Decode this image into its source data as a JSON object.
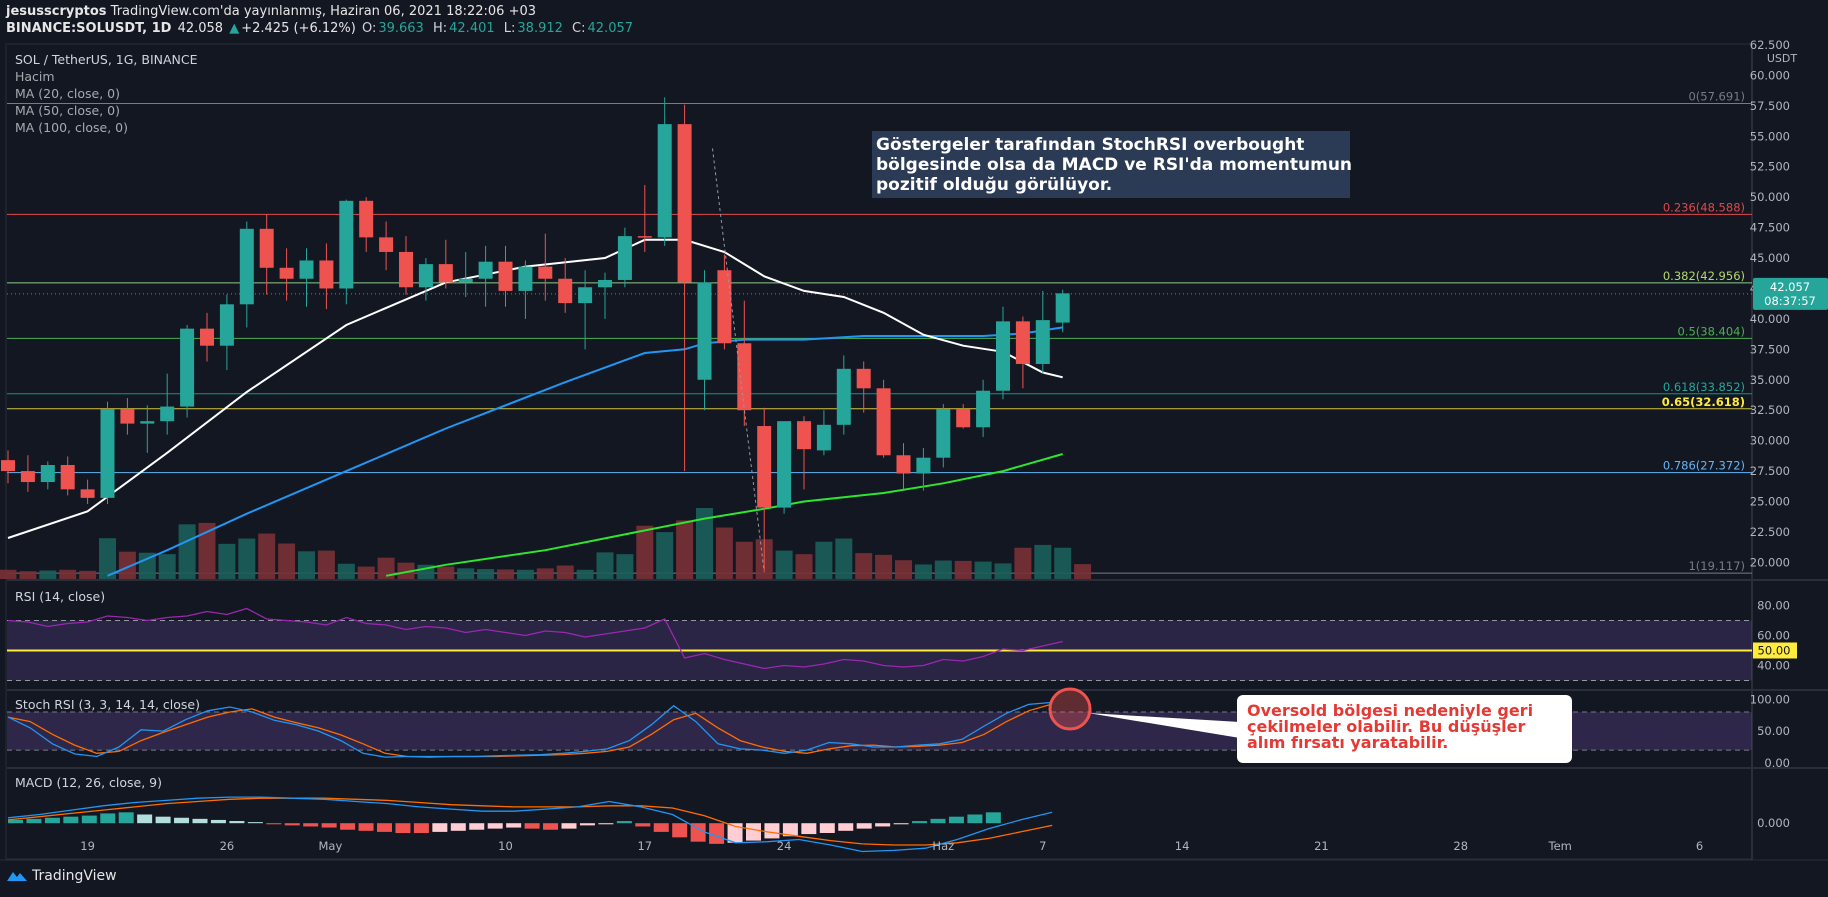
{
  "header": {
    "publisher": "jesusscryptos",
    "published_text": "TradingView.com'da yayınlanmış, Haziran 06, 2021 18:22:06 +03",
    "symbol_line": "BINANCE:SOLUSDT, 1D",
    "last": "42.058",
    "change": "+2.425 (+6.12%)",
    "o_label": "O:",
    "o": "39.663",
    "h_label": "H:",
    "h": "42.401",
    "l_label": "L:",
    "l": "38.912",
    "c_label": "C:",
    "c": "42.057"
  },
  "legend": {
    "title": "SOL / TetherUS, 1G, BINANCE",
    "items": [
      "Hacim",
      "MA (20, close, 0)",
      "MA (50, close, 0)",
      "MA (100, close, 0)"
    ]
  },
  "footer": {
    "brand": "TradingView"
  },
  "colors": {
    "up": "#26a69a",
    "down": "#ef5350",
    "ma20": "#ffffff",
    "ma50": "#2196f3",
    "ma100": "#2ee62e"
  },
  "chart_data": {
    "type": "candlestick",
    "price_axis": {
      "unit": "USDT",
      "ylim": [
        18.8,
        62.5
      ],
      "tick_labels": [
        "62.500",
        "60.000",
        "57.500",
        "55.000",
        "52.500",
        "50.000",
        "47.500",
        "45.000",
        "42.500",
        "40.000",
        "37.500",
        "35.000",
        "32.500",
        "30.000",
        "27.500",
        "25.000",
        "22.500",
        "20.000"
      ]
    },
    "x_axis": {
      "tick_labels": [
        "19",
        "26",
        "May",
        "10",
        "17",
        "24",
        "Haz",
        "7",
        "14",
        "21",
        "28",
        "Tem",
        "6"
      ],
      "tick_days": [
        4,
        11,
        16,
        25,
        32,
        39,
        47,
        52,
        59,
        66,
        73,
        78,
        85
      ]
    },
    "current_price": {
      "value": "42.057",
      "countdown": "08:37:57"
    },
    "ohlc": [
      [
        0,
        28.4,
        29.2,
        26.5,
        27.5
      ],
      [
        1,
        27.5,
        28.8,
        25.8,
        26.6
      ],
      [
        2,
        26.6,
        28.3,
        26.0,
        28.0
      ],
      [
        3,
        28.0,
        28.7,
        25.5,
        26.0
      ],
      [
        4,
        26.0,
        26.8,
        24.8,
        25.3
      ],
      [
        5,
        25.3,
        33.2,
        24.8,
        32.6
      ],
      [
        6,
        32.6,
        33.5,
        30.5,
        31.4
      ],
      [
        7,
        31.4,
        32.9,
        29.0,
        31.6
      ],
      [
        8,
        31.6,
        35.5,
        30.5,
        32.8
      ],
      [
        9,
        32.8,
        39.5,
        31.9,
        39.2
      ],
      [
        10,
        39.2,
        40.5,
        36.5,
        37.8
      ],
      [
        11,
        37.8,
        42.0,
        35.8,
        41.2
      ],
      [
        12,
        41.2,
        48.0,
        39.3,
        47.4
      ],
      [
        13,
        47.4,
        48.6,
        42.0,
        44.2
      ],
      [
        14,
        44.2,
        45.8,
        41.5,
        43.3
      ],
      [
        15,
        43.3,
        45.8,
        41.0,
        44.8
      ],
      [
        16,
        44.8,
        46.2,
        40.8,
        42.5
      ],
      [
        17,
        42.5,
        49.8,
        41.2,
        49.7
      ],
      [
        18,
        49.7,
        50.0,
        45.5,
        46.7
      ],
      [
        19,
        46.7,
        48.0,
        44.0,
        45.5
      ],
      [
        20,
        45.5,
        46.8,
        42.0,
        42.6
      ],
      [
        21,
        42.6,
        45.0,
        41.5,
        44.5
      ],
      [
        22,
        44.5,
        46.5,
        42.5,
        43.0
      ],
      [
        23,
        43.0,
        45.5,
        41.8,
        43.3
      ],
      [
        24,
        43.3,
        46.0,
        41.0,
        44.7
      ],
      [
        25,
        44.7,
        46.0,
        41.0,
        42.3
      ],
      [
        26,
        42.3,
        44.8,
        40.0,
        44.3
      ],
      [
        27,
        44.3,
        47.0,
        41.5,
        43.3
      ],
      [
        28,
        43.3,
        45.0,
        40.5,
        41.3
      ],
      [
        29,
        41.3,
        44.0,
        37.5,
        42.6
      ],
      [
        30,
        42.6,
        43.8,
        40.0,
        43.2
      ],
      [
        31,
        43.2,
        47.5,
        42.6,
        46.8
      ],
      [
        32,
        46.8,
        51.0,
        45.5,
        46.7
      ],
      [
        33,
        46.7,
        58.2,
        46.0,
        56.0
      ],
      [
        34,
        56.0,
        57.6,
        27.5,
        43.0
      ],
      [
        35,
        35.0,
        44.0,
        32.5,
        43.0
      ],
      [
        36,
        44.0,
        45.3,
        37.5,
        38.0
      ],
      [
        37,
        38.0,
        41.5,
        31.2,
        32.5
      ],
      [
        38,
        31.2,
        32.7,
        19.3,
        24.5
      ],
      [
        39,
        24.5,
        31.5,
        24.0,
        31.6
      ],
      [
        40,
        31.6,
        32.0,
        26.0,
        29.3
      ],
      [
        41,
        29.2,
        32.5,
        28.8,
        31.3
      ],
      [
        42,
        31.3,
        37.0,
        30.5,
        35.9
      ],
      [
        43,
        35.9,
        36.5,
        32.3,
        34.3
      ],
      [
        44,
        34.3,
        35.0,
        28.6,
        28.8
      ],
      [
        45,
        28.8,
        29.8,
        26.0,
        27.3
      ],
      [
        46,
        27.3,
        29.4,
        25.9,
        28.6
      ],
      [
        47,
        28.6,
        33.0,
        27.8,
        32.6
      ],
      [
        48,
        32.6,
        33.0,
        31.0,
        31.1
      ],
      [
        49,
        31.1,
        35.0,
        30.3,
        34.1
      ],
      [
        50,
        34.1,
        41.0,
        33.4,
        39.8
      ],
      [
        51,
        39.8,
        40.2,
        34.3,
        36.3
      ],
      [
        52,
        36.3,
        42.3,
        35.5,
        39.9
      ],
      [
        53,
        39.7,
        42.4,
        38.9,
        42.1
      ]
    ],
    "volume_up": [
      2,
      5,
      6,
      8,
      11
    ],
    "volume": [
      2.6,
      2.2,
      2.4,
      2.6,
      2.3,
      11.5,
      7.7,
      7.4,
      7.0,
      15.4,
      15.8,
      9.9,
      11.4,
      12.8,
      10.0,
      7.8,
      8.0,
      4.3,
      3.5,
      6.0,
      4.6,
      4.0,
      3.5,
      3.0,
      2.8,
      2.7,
      2.6,
      3.0,
      3.8,
      2.6,
      7.5,
      7.0,
      15.0,
      13.2,
      16.5,
      20.0,
      14.5,
      10.5,
      11.2,
      8.0,
      7.0,
      10.5,
      11.4,
      7.3,
      6.8,
      5.3,
      4.1,
      5.2,
      5.1,
      4.9,
      4.4,
      8.8,
      9.6,
      8.8,
      4.2
    ],
    "ma20": [
      [
        0,
        22.0
      ],
      [
        4,
        24.2
      ],
      [
        8,
        29.0
      ],
      [
        12,
        34.0
      ],
      [
        17,
        39.5
      ],
      [
        22,
        43.0
      ],
      [
        26,
        44.3
      ],
      [
        30,
        45.0
      ],
      [
        32,
        46.5
      ],
      [
        34,
        46.5
      ],
      [
        36,
        45.5
      ],
      [
        38,
        43.5
      ],
      [
        40,
        42.3
      ],
      [
        42,
        41.8
      ],
      [
        44,
        40.5
      ],
      [
        46,
        38.7
      ],
      [
        48,
        37.8
      ],
      [
        50,
        37.3
      ],
      [
        52,
        35.6
      ],
      [
        53,
        35.2
      ]
    ],
    "ma50": [
      [
        5,
        18.9
      ],
      [
        8,
        21.0
      ],
      [
        12,
        24.0
      ],
      [
        17,
        27.5
      ],
      [
        22,
        31.0
      ],
      [
        28,
        34.8
      ],
      [
        32,
        37.2
      ],
      [
        34,
        37.5
      ],
      [
        35,
        38.0
      ],
      [
        37,
        38.3
      ],
      [
        40,
        38.3
      ],
      [
        43,
        38.6
      ],
      [
        46,
        38.6
      ],
      [
        49,
        38.6
      ],
      [
        51,
        38.8
      ],
      [
        53,
        39.3
      ]
    ],
    "ma100": [
      [
        19,
        18.9
      ],
      [
        22,
        19.8
      ],
      [
        27,
        21.0
      ],
      [
        31,
        22.3
      ],
      [
        35,
        23.6
      ],
      [
        38,
        24.4
      ],
      [
        40,
        25.0
      ],
      [
        44,
        25.7
      ],
      [
        47,
        26.5
      ],
      [
        50,
        27.5
      ],
      [
        53,
        28.9
      ]
    ],
    "fib_levels": [
      {
        "label": "0(57.691)",
        "value": 57.691,
        "color": "#787b86",
        "text_color": "#787b86"
      },
      {
        "label": "0.236(48.588)",
        "value": 48.588,
        "color": "#e04848",
        "text_color": "#e04848"
      },
      {
        "label": "0.382(42.956)",
        "value": 42.956,
        "color": "#8ccd88",
        "text_color": "#b5d96b"
      },
      {
        "label": "0.5(38.404)",
        "value": 38.404,
        "color": "#4caf50",
        "text_color": "#4caf50"
      },
      {
        "label": "0.618(33.852)",
        "value": 33.852,
        "color": "#089981",
        "text_color": "#26a69a"
      },
      {
        "label": "0.65(32.618)",
        "value": 32.618,
        "color": "#d4c342",
        "text_color": "#ffeb3b"
      },
      {
        "label": "0.786(27.372)",
        "value": 27.372,
        "color": "#64b5f6",
        "text_color": "#64b5f6"
      },
      {
        "label": "1(19.117)",
        "value": 19.117,
        "color": "#787b86",
        "text_color": "#787b86"
      }
    ],
    "rsi": {
      "title": "RSI (14, close)",
      "ylim": [
        25,
        95
      ],
      "tick_labels": [
        "80.00",
        "60.00",
        "40.00"
      ],
      "ticks": [
        80,
        60,
        40
      ],
      "bands": [
        70,
        30
      ],
      "level_label": "50.00",
      "level": 50,
      "values": [
        70,
        69,
        66,
        68,
        69,
        73,
        72,
        70,
        72,
        73,
        76,
        74,
        78,
        71,
        70,
        69,
        67,
        72,
        68,
        67,
        64,
        66,
        65,
        62,
        64,
        62,
        60,
        63,
        62,
        59,
        61,
        63,
        65,
        71,
        45,
        48,
        44,
        41,
        38,
        40,
        39,
        41,
        44,
        43,
        40,
        39,
        40,
        44,
        43,
        46,
        51,
        50,
        53,
        56
      ]
    },
    "stoch": {
      "title": "Stoch RSI (3, 3, 14, 14, close)",
      "ylim": [
        -5,
        110
      ],
      "tick_labels": [
        "100.00",
        "50.00",
        "0.00"
      ],
      "ticks": [
        100,
        50,
        0
      ],
      "bands": [
        80,
        20
      ],
      "k": [
        72,
        55,
        30,
        14,
        10,
        25,
        52,
        50,
        68,
        82,
        88,
        80,
        67,
        60,
        50,
        35,
        15,
        9,
        10,
        10,
        10,
        10,
        11,
        12,
        13,
        15,
        18,
        22,
        35,
        60,
        90,
        65,
        30,
        22,
        20,
        15,
        20,
        32,
        30,
        25,
        25,
        28,
        30,
        37,
        58,
        78,
        92,
        95
      ],
      "d": [
        72,
        65,
        45,
        28,
        15,
        18,
        35,
        48,
        60,
        72,
        80,
        85,
        72,
        63,
        55,
        44,
        30,
        15,
        10,
        9,
        10,
        10,
        10,
        11,
        12,
        13,
        15,
        18,
        25,
        45,
        68,
        78,
        55,
        35,
        25,
        18,
        15,
        22,
        27,
        28,
        25,
        26,
        28,
        32,
        45,
        65,
        82,
        92
      ]
    },
    "macd": {
      "title": "MACD (12, 26, close, 9)",
      "ylim": [
        -3.2,
        4.8
      ],
      "tick_labels": [
        "0.000"
      ],
      "ticks": [
        0
      ],
      "macd": [
        0.5,
        0.8,
        1.2,
        1.6,
        1.9,
        2.1,
        2.3,
        2.4,
        2.4,
        2.3,
        2.2,
        2.0,
        1.8,
        1.5,
        1.3,
        1.1,
        1.1,
        1.3,
        1.5,
        2.0,
        1.5,
        0.8,
        -0.8,
        -1.8,
        -1.7,
        -1.5,
        -2.0,
        -2.6,
        -2.5,
        -2.3,
        -1.5,
        -0.5,
        0.3,
        1.0
      ],
      "signal": [
        0.3,
        0.6,
        0.9,
        1.2,
        1.5,
        1.8,
        2.0,
        2.2,
        2.3,
        2.3,
        2.3,
        2.2,
        2.1,
        1.9,
        1.7,
        1.6,
        1.5,
        1.5,
        1.5,
        1.6,
        1.6,
        1.4,
        0.7,
        -0.3,
        -0.8,
        -1.2,
        -1.6,
        -1.9,
        -2.0,
        -2.0,
        -1.8,
        -1.4,
        -0.8,
        -0.2
      ],
      "hist": [
        0.3,
        0.4,
        0.5,
        0.6,
        0.7,
        0.9,
        1.0,
        0.8,
        0.6,
        0.5,
        0.4,
        0.3,
        0.2,
        0.1,
        -0.1,
        -0.2,
        -0.3,
        -0.4,
        -0.6,
        -0.7,
        -0.8,
        -0.9,
        -0.9,
        -0.8,
        -0.7,
        -0.6,
        -0.5,
        -0.4,
        -0.5,
        -0.6,
        -0.5,
        -0.2,
        -0.1,
        0.2,
        -0.3,
        -0.8,
        -1.3,
        -1.7,
        -1.9,
        -1.8,
        -1.6,
        -1.4,
        -1.2,
        -1.0,
        -0.9,
        -0.7,
        -0.5,
        -0.3,
        -0.1,
        0.2,
        0.4,
        0.6,
        0.8,
        1.0
      ]
    },
    "annotations": [
      {
        "text": [
          "Göstergeler tarafından StochRSI overbought",
          "bölgesinde olsa da MACD ve RSI'da momentumun",
          "pozitif olduğu görülüyor."
        ]
      },
      {
        "text": [
          "Oversold bölgesi nedeniyle geri",
          "çekilmeler olabilir. Bu düşüşler",
          "alım fırsatı yaratabilir."
        ]
      }
    ]
  }
}
